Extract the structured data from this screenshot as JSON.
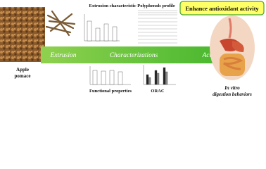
{
  "header": {
    "title": "Enhance antioxidant activity"
  },
  "source": {
    "label": [
      "Apple",
      "pomace"
    ]
  },
  "arrow": {
    "stages": [
      "Extrusion",
      "Characterizations",
      "Activity"
    ]
  },
  "panels": {
    "top": [
      "Extrusion characteristic",
      "Polyphenols profile"
    ],
    "bottom": [
      "Functional properties",
      "ORAC"
    ]
  },
  "result": {
    "label": [
      "In vitro",
      "digestion behaviors"
    ]
  }
}
